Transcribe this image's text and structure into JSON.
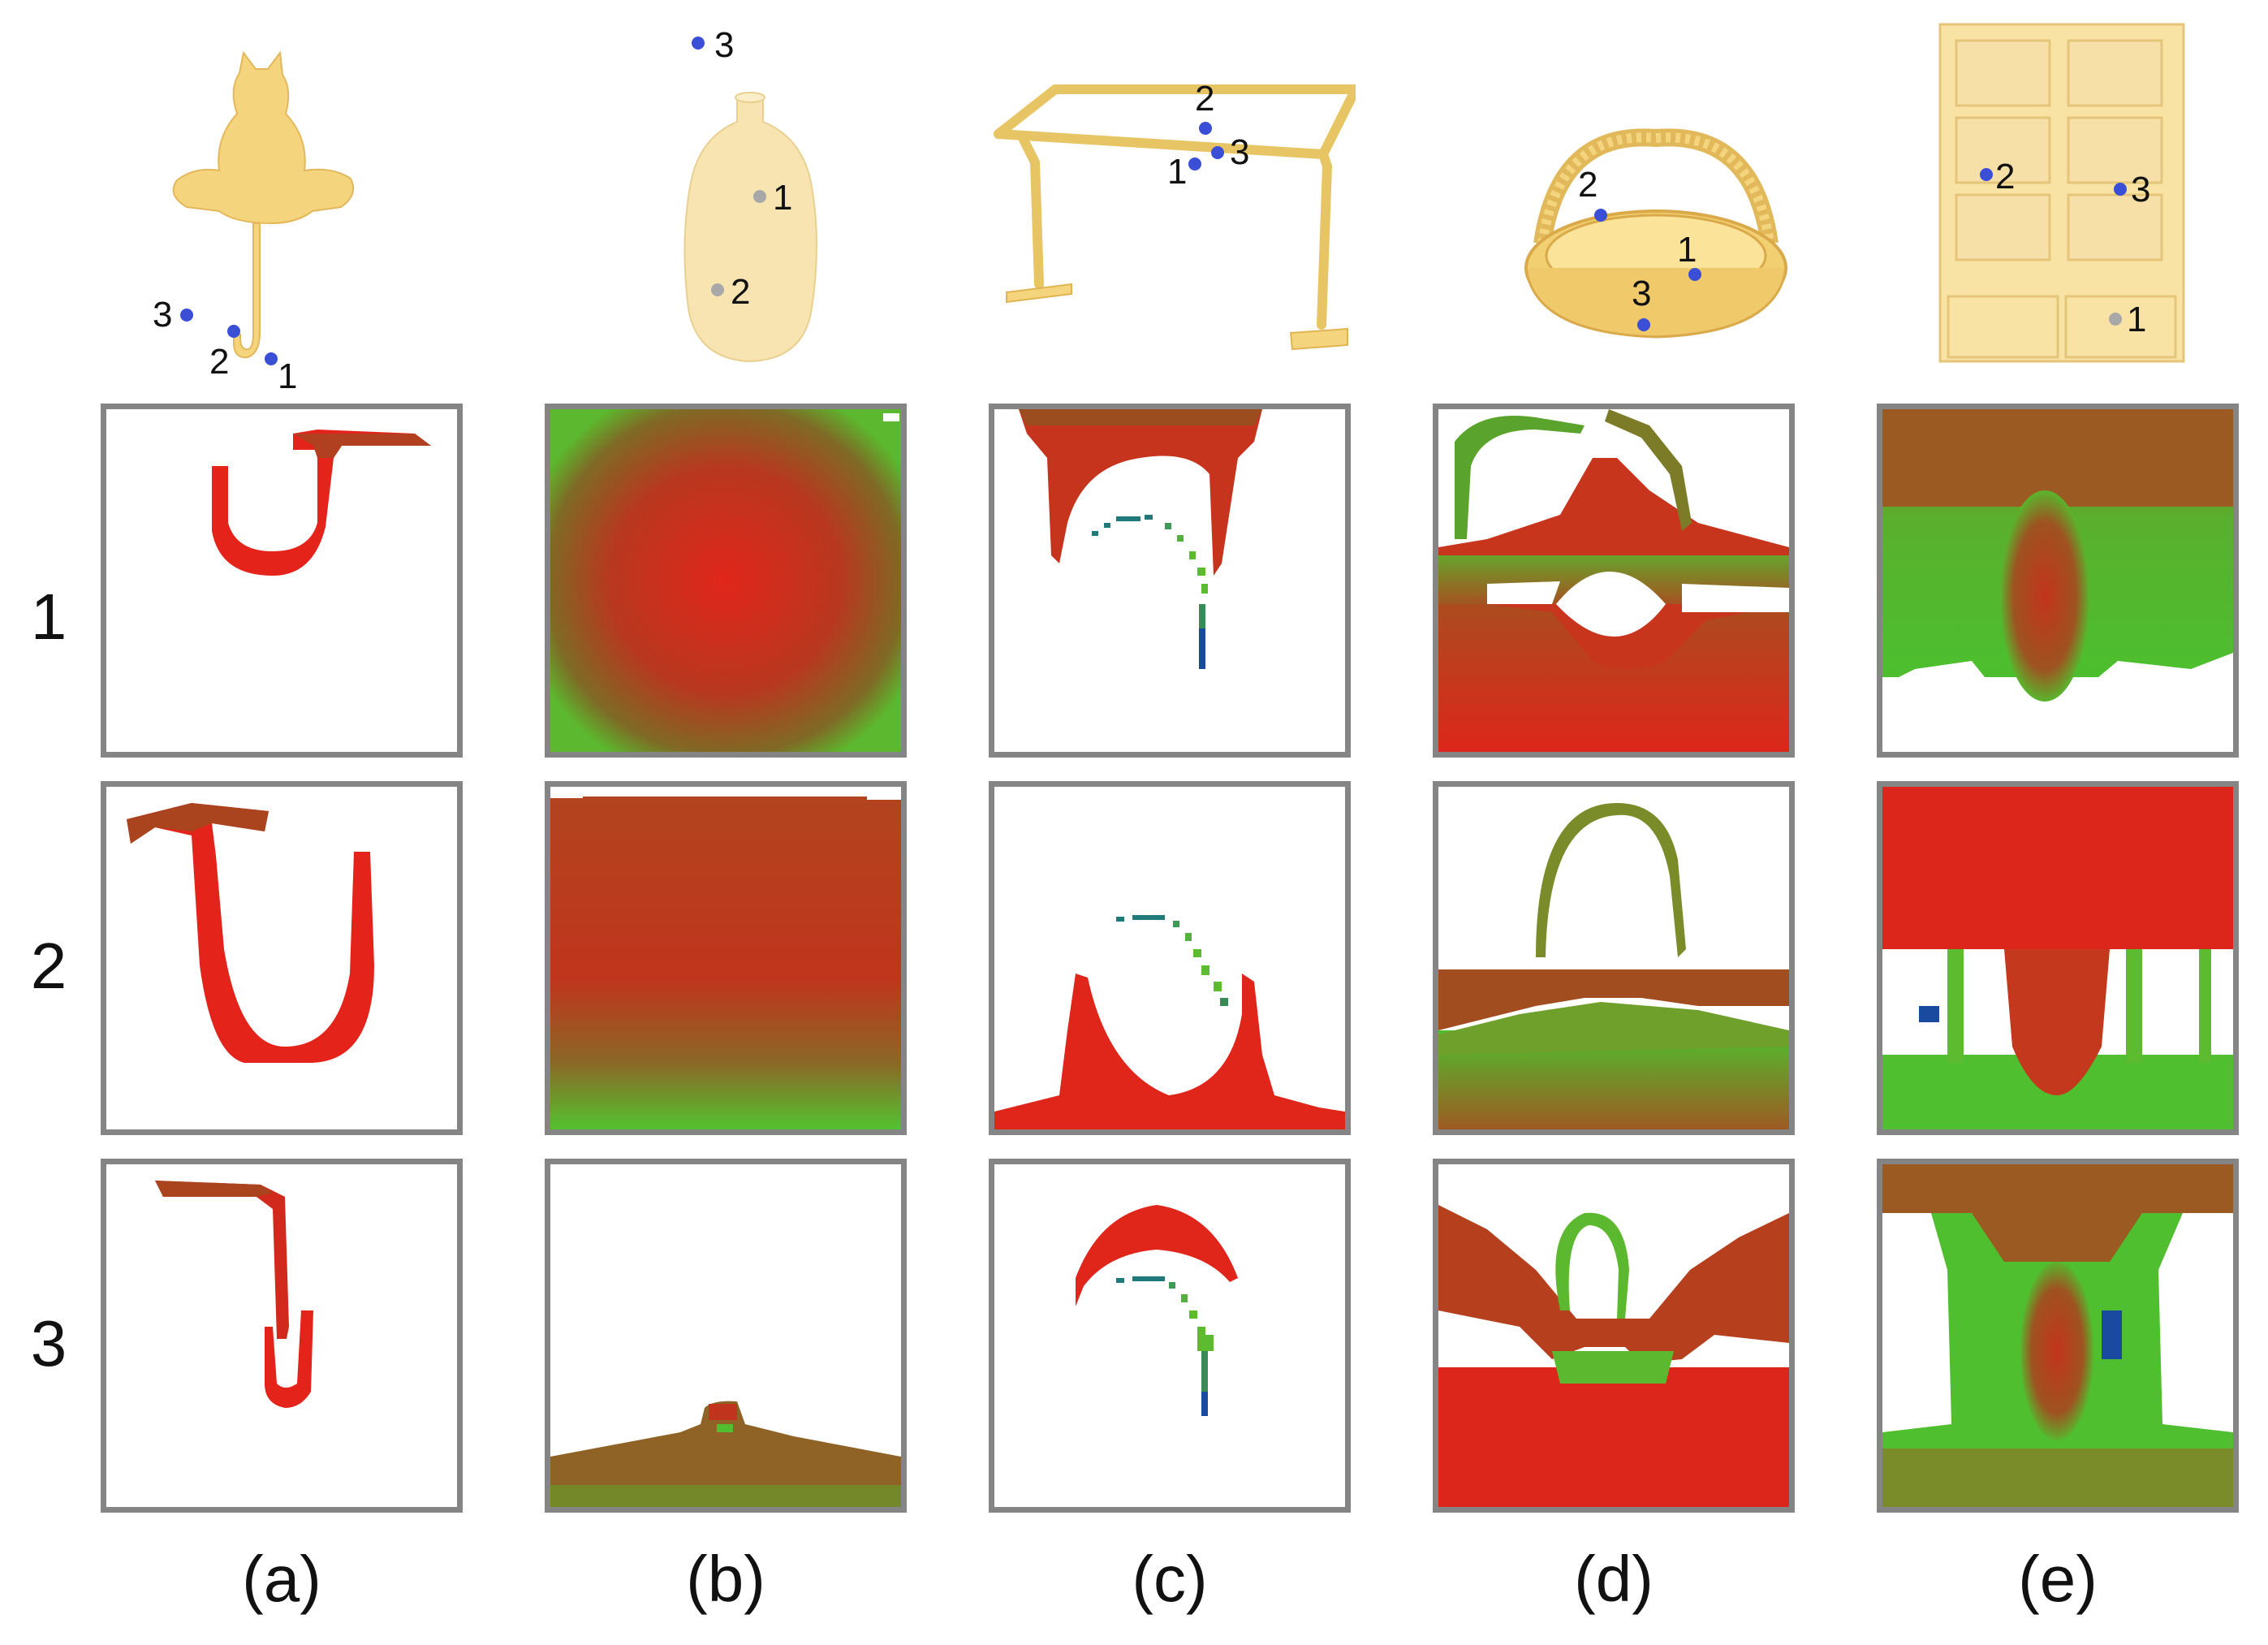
{
  "colors": {
    "object": "#f6d57e",
    "point_blue": "#3a4ed6",
    "point_gray": "#a8a8a8",
    "frame": "#858585",
    "map_red": "#e2231a",
    "map_brown": "#a0522d",
    "map_green": "#5dbb2f",
    "map_blue": "#1a4aa0"
  },
  "row_labels": [
    "1",
    "2",
    "3"
  ],
  "column_labels": [
    "(a)",
    "(b)",
    "(c)",
    "(d)",
    "(e)"
  ],
  "objects": [
    {
      "name": "cat-hook",
      "points": [
        "1",
        "2",
        "3"
      ]
    },
    {
      "name": "vase",
      "points": [
        "1",
        "2",
        "3"
      ]
    },
    {
      "name": "clothes-rack",
      "points": [
        "1",
        "2",
        "3"
      ]
    },
    {
      "name": "basket",
      "points": [
        "1",
        "2",
        "3"
      ]
    },
    {
      "name": "shelf",
      "points": [
        "1",
        "2",
        "3"
      ]
    }
  ]
}
